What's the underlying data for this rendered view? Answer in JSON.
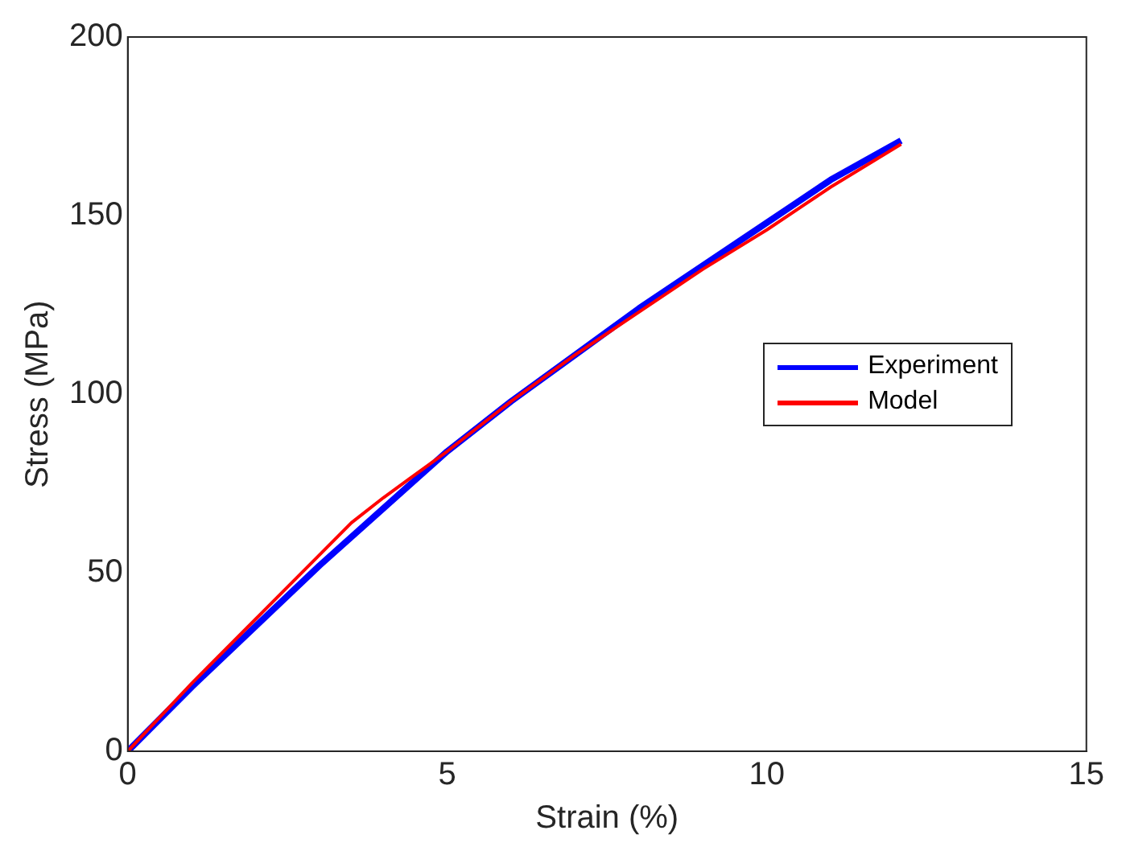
{
  "chart_data": {
    "type": "line",
    "xlabel": "Strain (%)",
    "ylabel": "Stress (MPa)",
    "xlim": [
      0,
      15
    ],
    "xticks": [
      0,
      5,
      10,
      15
    ],
    "ylim": [
      0,
      200
    ],
    "yticks": [
      0,
      50,
      100,
      150,
      200
    ],
    "grid": false,
    "legend": "right",
    "marker": "none",
    "line_style": "solid",
    "series": [
      {
        "name": "Experiment",
        "color": "#0000ff",
        "x": [
          0,
          1,
          2,
          3,
          4,
          5,
          6,
          7,
          8,
          9,
          10,
          11,
          12.1
        ],
        "values": [
          0,
          18,
          35,
          52,
          68,
          84,
          98,
          111,
          124,
          136,
          148,
          160,
          171
        ]
      },
      {
        "name": "Model",
        "color": "#ff0000",
        "x": [
          0,
          1,
          2,
          3,
          3.5,
          4,
          5,
          6,
          7,
          8,
          9,
          10,
          11,
          12.1
        ],
        "values": [
          0,
          19,
          37,
          55,
          64,
          71,
          84,
          98,
          111,
          123,
          135,
          146,
          158,
          170
        ]
      }
    ]
  }
}
